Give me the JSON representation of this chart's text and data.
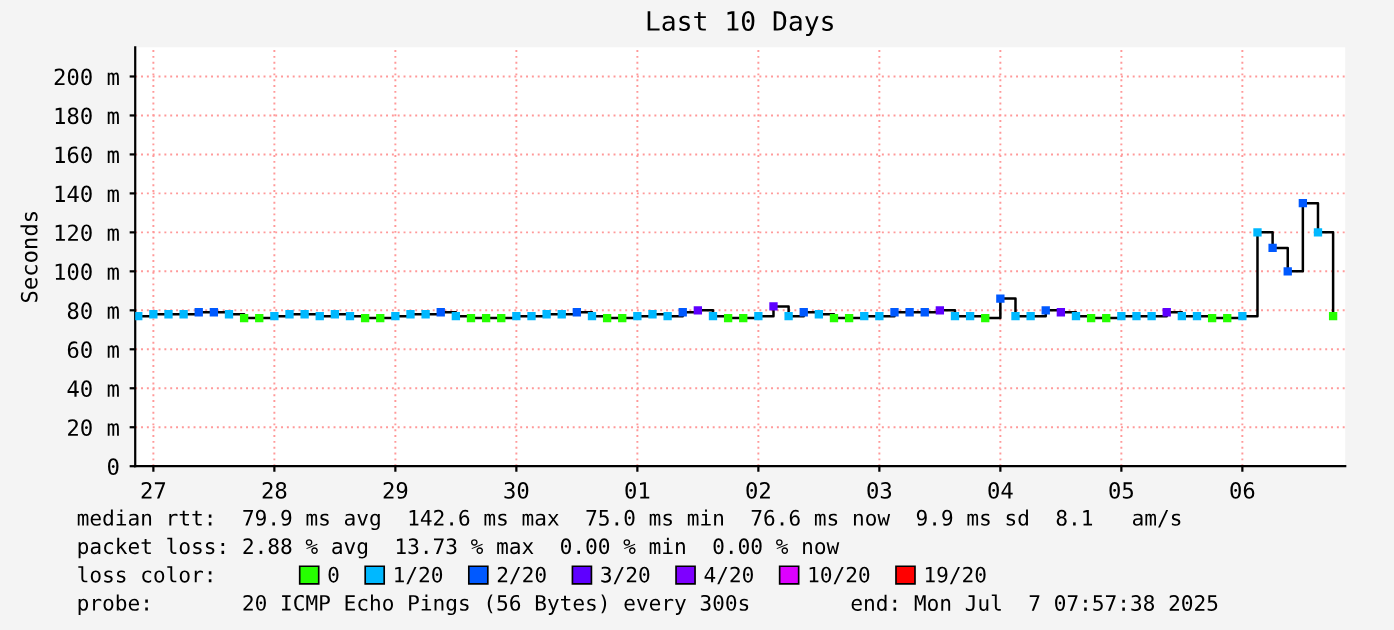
{
  "chart_data": {
    "type": "scatter",
    "title": "Last 10 Days",
    "ylabel": "Seconds",
    "legend_title": "loss color:",
    "x": [
      "2025-06-26T21:00",
      "2025-06-27T00:00",
      "2025-06-27T03:00",
      "2025-06-27T06:00",
      "2025-06-27T09:00",
      "2025-06-27T12:00",
      "2025-06-27T15:00",
      "2025-06-27T18:00",
      "2025-06-27T21:00",
      "2025-06-28T00:00",
      "2025-06-28T03:00",
      "2025-06-28T06:00",
      "2025-06-28T09:00",
      "2025-06-28T12:00",
      "2025-06-28T15:00",
      "2025-06-28T18:00",
      "2025-06-28T21:00",
      "2025-06-29T00:00",
      "2025-06-29T03:00",
      "2025-06-29T06:00",
      "2025-06-29T09:00",
      "2025-06-29T12:00",
      "2025-06-29T15:00",
      "2025-06-29T18:00",
      "2025-06-29T21:00",
      "2025-06-30T00:00",
      "2025-06-30T03:00",
      "2025-06-30T06:00",
      "2025-06-30T09:00",
      "2025-06-30T12:00",
      "2025-06-30T15:00",
      "2025-06-30T18:00",
      "2025-06-30T21:00",
      "2025-07-01T00:00",
      "2025-07-01T03:00",
      "2025-07-01T06:00",
      "2025-07-01T09:00",
      "2025-07-01T12:00",
      "2025-07-01T15:00",
      "2025-07-01T18:00",
      "2025-07-01T21:00",
      "2025-07-02T00:00",
      "2025-07-02T03:00",
      "2025-07-02T06:00",
      "2025-07-02T09:00",
      "2025-07-02T12:00",
      "2025-07-02T15:00",
      "2025-07-02T18:00",
      "2025-07-02T21:00",
      "2025-07-03T00:00",
      "2025-07-03T03:00",
      "2025-07-03T06:00",
      "2025-07-03T09:00",
      "2025-07-03T12:00",
      "2025-07-03T15:00",
      "2025-07-03T18:00",
      "2025-07-03T21:00",
      "2025-07-04T00:00",
      "2025-07-04T03:00",
      "2025-07-04T06:00",
      "2025-07-04T09:00",
      "2025-07-04T12:00",
      "2025-07-04T15:00",
      "2025-07-04T18:00",
      "2025-07-04T21:00",
      "2025-07-05T00:00",
      "2025-07-05T03:00",
      "2025-07-05T06:00",
      "2025-07-05T09:00",
      "2025-07-05T12:00",
      "2025-07-05T15:00",
      "2025-07-05T18:00",
      "2025-07-05T21:00",
      "2025-07-06T00:00",
      "2025-07-06T03:00",
      "2025-07-06T06:00",
      "2025-07-06T09:00",
      "2025-07-06T12:00",
      "2025-07-06T15:00",
      "2025-07-06T18:00"
    ],
    "series": [
      {
        "type": "step",
        "color": "#000000",
        "values": [
          77,
          78,
          78,
          78,
          79,
          79,
          78,
          76,
          76,
          77,
          78,
          78,
          77,
          78,
          77,
          76,
          76,
          77,
          78,
          78,
          79,
          77,
          76,
          76,
          76,
          77,
          77,
          78,
          78,
          79,
          77,
          76,
          76,
          77,
          78,
          77,
          79,
          80,
          77,
          76,
          76,
          77,
          82,
          77,
          79,
          78,
          76,
          76,
          77,
          77,
          79,
          79,
          79,
          80,
          77,
          77,
          76,
          86,
          77,
          77,
          80,
          79,
          77,
          76,
          76,
          77,
          77,
          77,
          79,
          77,
          77,
          76,
          76,
          77,
          120,
          112,
          100,
          135,
          120,
          77
        ]
      },
      {
        "name": "0",
        "color": "#26ff00",
        "marker": "square",
        "values": [
          null,
          null,
          null,
          null,
          null,
          null,
          null,
          76,
          76,
          null,
          null,
          null,
          null,
          null,
          null,
          76,
          76,
          null,
          null,
          null,
          null,
          null,
          76,
          76,
          76,
          null,
          null,
          null,
          null,
          null,
          null,
          76,
          76,
          null,
          null,
          null,
          null,
          null,
          null,
          76,
          76,
          null,
          null,
          null,
          null,
          null,
          76,
          76,
          null,
          null,
          null,
          null,
          null,
          null,
          null,
          null,
          76,
          null,
          null,
          null,
          null,
          null,
          null,
          76,
          76,
          null,
          null,
          null,
          null,
          null,
          null,
          76,
          76,
          null,
          null,
          null,
          null,
          null,
          null,
          77
        ]
      },
      {
        "name": "1/20",
        "color": "#00b8ff",
        "marker": "square",
        "values": [
          77,
          78,
          78,
          78,
          null,
          null,
          78,
          null,
          null,
          77,
          78,
          78,
          77,
          78,
          77,
          null,
          null,
          77,
          78,
          78,
          null,
          77,
          null,
          null,
          null,
          77,
          77,
          78,
          78,
          null,
          77,
          null,
          null,
          77,
          78,
          77,
          null,
          null,
          77,
          null,
          null,
          77,
          null,
          77,
          null,
          78,
          null,
          null,
          77,
          77,
          null,
          null,
          null,
          null,
          77,
          77,
          null,
          null,
          77,
          77,
          null,
          null,
          77,
          null,
          null,
          77,
          77,
          77,
          null,
          77,
          77,
          null,
          null,
          77,
          120,
          null,
          null,
          null,
          120,
          null
        ]
      },
      {
        "name": "2/20",
        "color": "#0059ff",
        "marker": "square",
        "values": [
          null,
          null,
          null,
          null,
          79,
          79,
          null,
          null,
          null,
          null,
          null,
          null,
          null,
          null,
          null,
          null,
          null,
          null,
          null,
          null,
          79,
          null,
          null,
          null,
          null,
          null,
          null,
          null,
          null,
          79,
          null,
          null,
          null,
          null,
          null,
          null,
          79,
          null,
          null,
          null,
          null,
          null,
          null,
          null,
          79,
          null,
          null,
          null,
          null,
          null,
          79,
          79,
          79,
          null,
          null,
          null,
          null,
          86,
          null,
          null,
          80,
          null,
          null,
          null,
          null,
          null,
          null,
          null,
          null,
          null,
          null,
          null,
          null,
          null,
          null,
          112,
          100,
          135,
          null,
          null
        ]
      },
      {
        "name": "3/20",
        "color": "#5e00ff",
        "marker": "square",
        "values": [
          null,
          null,
          null,
          null,
          null,
          null,
          null,
          null,
          null,
          null,
          null,
          null,
          null,
          null,
          null,
          null,
          null,
          null,
          null,
          null,
          null,
          null,
          null,
          null,
          null,
          null,
          null,
          null,
          null,
          null,
          null,
          null,
          null,
          null,
          null,
          null,
          null,
          80,
          null,
          null,
          null,
          null,
          82,
          null,
          null,
          null,
          null,
          null,
          null,
          null,
          null,
          null,
          null,
          80,
          null,
          null,
          null,
          null,
          null,
          null,
          null,
          79,
          null,
          null,
          null,
          null,
          null,
          null,
          79,
          null,
          null,
          null,
          null,
          null,
          null,
          null,
          null,
          null,
          null,
          null
        ]
      },
      {
        "name": "4/20",
        "color": "#7e00ff",
        "marker": "square",
        "values": [
          null,
          null,
          null,
          null,
          null,
          null,
          null,
          null,
          null,
          null,
          null,
          null,
          null,
          null,
          null,
          null,
          null,
          null,
          null,
          null,
          null,
          null,
          null,
          null,
          null,
          null,
          null,
          null,
          null,
          null,
          null,
          null,
          null,
          null,
          null,
          null,
          null,
          null,
          null,
          null,
          null,
          null,
          null,
          null,
          null,
          null,
          null,
          null,
          null,
          null,
          null,
          null,
          null,
          null,
          null,
          null,
          null,
          null,
          null,
          null,
          null,
          null,
          null,
          null,
          null,
          null,
          null,
          null,
          null,
          null,
          null,
          null,
          null,
          null,
          null,
          null,
          null,
          null,
          null,
          null
        ]
      },
      {
        "name": "10/20",
        "color": "#dd00ff",
        "marker": "square",
        "values": [
          null,
          null,
          null,
          null,
          null,
          null,
          null,
          null,
          null,
          null,
          null,
          null,
          null,
          null,
          null,
          null,
          null,
          null,
          null,
          null,
          null,
          null,
          null,
          null,
          null,
          null,
          null,
          null,
          null,
          null,
          null,
          null,
          null,
          null,
          null,
          null,
          null,
          null,
          null,
          null,
          null,
          null,
          null,
          null,
          null,
          null,
          null,
          null,
          null,
          null,
          null,
          null,
          null,
          null,
          null,
          null,
          null,
          null,
          null,
          null,
          null,
          null,
          null,
          null,
          null,
          null,
          null,
          null,
          null,
          null,
          null,
          null,
          null,
          null,
          null,
          null,
          null,
          null,
          null,
          null
        ]
      },
      {
        "name": "19/20",
        "color": "#ff0000",
        "marker": "square",
        "values": [
          null,
          null,
          null,
          null,
          null,
          null,
          null,
          null,
          null,
          null,
          null,
          null,
          null,
          null,
          null,
          null,
          null,
          null,
          null,
          null,
          null,
          null,
          null,
          null,
          null,
          null,
          null,
          null,
          null,
          null,
          null,
          null,
          null,
          null,
          null,
          null,
          null,
          null,
          null,
          null,
          null,
          null,
          null,
          null,
          null,
          null,
          null,
          null,
          null,
          null,
          null,
          null,
          null,
          null,
          null,
          null,
          null,
          null,
          null,
          null,
          null,
          null,
          null,
          null,
          null,
          null,
          null,
          null,
          null,
          null,
          null,
          null,
          null,
          null,
          null,
          null,
          null,
          null,
          null,
          null
        ]
      }
    ],
    "xlim": [
      "2025-06-26T20:24",
      "2025-07-06T20:24"
    ],
    "xticks": [
      {
        "value": "2025-06-27",
        "label": "27"
      },
      {
        "value": "2025-06-28",
        "label": "28"
      },
      {
        "value": "2025-06-29",
        "label": "29"
      },
      {
        "value": "2025-06-30",
        "label": "30"
      },
      {
        "value": "2025-07-01",
        "label": "01"
      },
      {
        "value": "2025-07-02",
        "label": "02"
      },
      {
        "value": "2025-07-03",
        "label": "03"
      },
      {
        "value": "2025-07-04",
        "label": "04"
      },
      {
        "value": "2025-07-05",
        "label": "05"
      },
      {
        "value": "2025-07-06",
        "label": "06"
      }
    ],
    "ylim": [
      0,
      215
    ],
    "yticks": [
      0,
      {
        "value": 20,
        "label": "20 m"
      },
      {
        "value": 40,
        "label": "40 m"
      },
      {
        "value": 60,
        "label": "60 m"
      },
      {
        "value": 80,
        "label": "80 m"
      },
      {
        "value": 100,
        "label": "100 m"
      },
      {
        "value": 120,
        "label": "120 m"
      },
      {
        "value": 140,
        "label": "140 m"
      },
      {
        "value": 160,
        "label": "160 m"
      },
      {
        "value": 180,
        "label": "180 m"
      },
      {
        "value": 200,
        "label": "200 m"
      }
    ],
    "grid": true,
    "legend": "bottom",
    "annotations": [
      "median rtt:  79.9 ms avg  142.6 ms max  75.0 ms min  76.6 ms now  9.9 ms sd  8.1   am/s",
      "packet loss: 2.88 % avg  13.73 % max  0.00 % min  0.00 % now",
      "probe:       20 ICMP Echo Pings (56 Bytes) every 300s",
      "end: Mon Jul  7 07:57:38 2025"
    ]
  }
}
